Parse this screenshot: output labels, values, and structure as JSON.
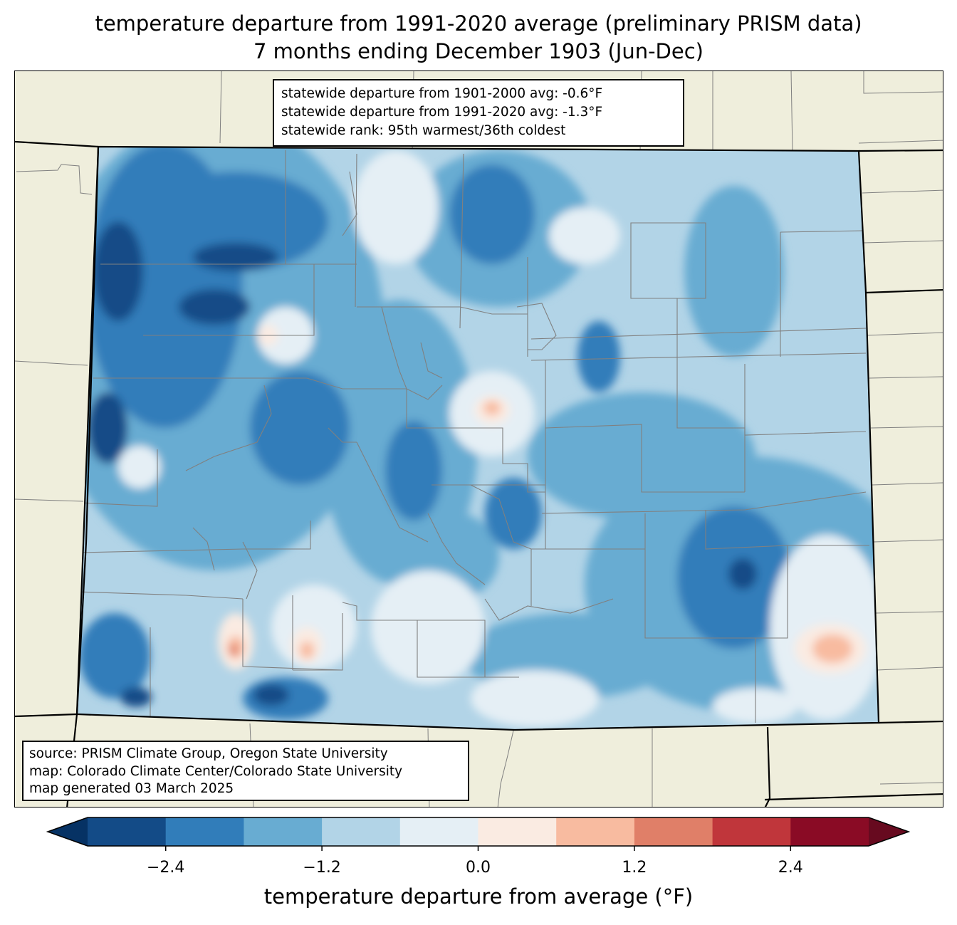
{
  "title": {
    "line1": "temperature departure from 1991-2020 average (preliminary PRISM data)",
    "line2": "7 months ending December 1903 (Jun-Dec)"
  },
  "stats": {
    "line1": "statewide departure from 1901-2000 avg: -0.6°F",
    "line2": "statewide departure from 1991-2020 avg: -1.3°F",
    "line3": "statewide rank: 95th warmest/36th coldest"
  },
  "source": {
    "line1": "source: PRISM Climate Group, Oregon State University",
    "line2": "map: Colorado Climate Center/Colorado State University",
    "line3": "map generated 03 March 2025"
  },
  "colorbar": {
    "label": "temperature departure from average (°F)",
    "ticks": [
      "−2.4",
      "−1.2",
      "0.0",
      "1.2",
      "2.4"
    ],
    "tick_values": [
      -2.4,
      -1.2,
      0.0,
      1.2,
      2.4
    ],
    "bounds": [
      -3.0,
      -2.4,
      -1.8,
      -1.2,
      -0.6,
      0.0,
      0.6,
      1.2,
      1.8,
      2.4,
      3.0
    ],
    "colors": [
      "#134b87",
      "#317dba",
      "#68acd2",
      "#b2d4e7",
      "#e5eff5",
      "#faebe2",
      "#f8bba0",
      "#e07f68",
      "#c0363b",
      "#8a0b25"
    ],
    "extend_low_color": "#063264",
    "extend_high_color": "#670a1f"
  },
  "map_colors": {
    "background": "#efeedc",
    "state_border": "#000000",
    "county_lines": "#808080"
  }
}
